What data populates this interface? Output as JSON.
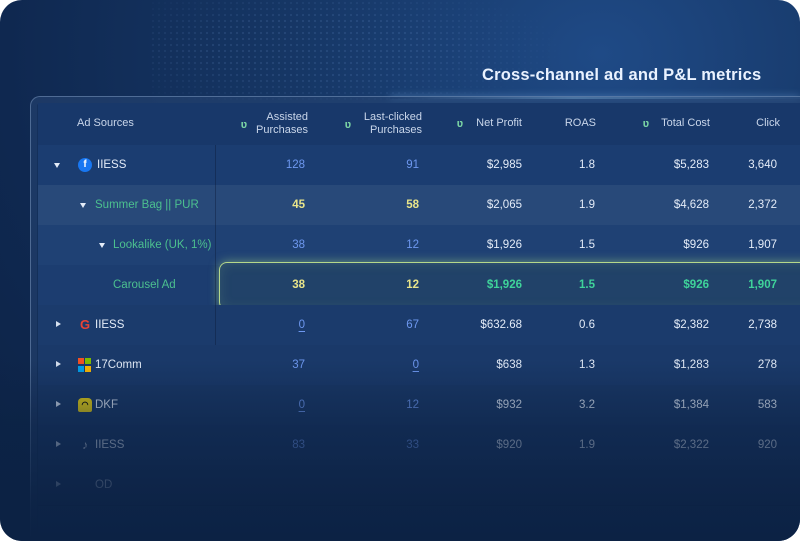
{
  "title": "Cross-channel ad and P&L metrics",
  "colors": {
    "background": "#163766",
    "table_row": "#1b3d71",
    "blue_value": "#6e98f0",
    "yellow_value": "#e9e58a",
    "green_value": "#3fd39a",
    "highlight_border": "#b6d88a"
  },
  "columns": {
    "source": "Ad Sources",
    "assisted": [
      "Assisted",
      "Purchases"
    ],
    "last_clicked": [
      "Last-clicked",
      "Purchases"
    ],
    "net_profit": "Net Profit",
    "roas": "ROAS",
    "total_cost": "Total Cost",
    "click": "Click",
    "metric_icon": "ua-logo-icon"
  },
  "rows": [
    {
      "name": "IIESS",
      "icon": "facebook-icon",
      "expand": "expanded",
      "assisted": "128",
      "last_clicked": "91",
      "net_profit": "$2,985",
      "roas": "1.8",
      "total_cost": "$5,283",
      "click": "3,640"
    },
    {
      "name": "Summer Bag || PUR",
      "icon": "",
      "expand": "expanded",
      "assisted": "45",
      "last_clicked": "58",
      "net_profit": "$2,065",
      "roas": "1.9",
      "total_cost": "$4,628",
      "click": "2,372"
    },
    {
      "name": "Lookalike (UK, 1%)",
      "icon": "",
      "expand": "expanded",
      "assisted": "38",
      "last_clicked": "12",
      "net_profit": "$1,926",
      "roas": "1.5",
      "total_cost": "$926",
      "click": "1,907"
    },
    {
      "name": "Carousel Ad",
      "icon": "",
      "expand": "none",
      "assisted": "38",
      "last_clicked": "12",
      "net_profit": "$1,926",
      "roas": "1.5",
      "total_cost": "$926",
      "click": "1,907"
    },
    {
      "name": "IIESS",
      "icon": "google-icon",
      "expand": "collapsed",
      "assisted": "0",
      "last_clicked": "67",
      "net_profit": "$632.68",
      "roas": "0.6",
      "total_cost": "$2,382",
      "click": "2,738"
    },
    {
      "name": "17Comm",
      "icon": "microsoft-icon",
      "expand": "collapsed",
      "assisted": "37",
      "last_clicked": "0",
      "net_profit": "$638",
      "roas": "1.3",
      "total_cost": "$1,283",
      "click": "278"
    },
    {
      "name": "DKF",
      "icon": "snapchat-icon",
      "expand": "collapsed",
      "assisted": "0",
      "last_clicked": "12",
      "net_profit": "$932",
      "roas": "3.2",
      "total_cost": "$1,384",
      "click": "583"
    },
    {
      "name": "IIESS",
      "icon": "tiktok-icon",
      "expand": "collapsed",
      "assisted": "83",
      "last_clicked": "33",
      "net_profit": "$920",
      "roas": "1.9",
      "total_cost": "$2,322",
      "click": "920"
    },
    {
      "name": "OD",
      "icon": "",
      "expand": "collapsed",
      "assisted": "",
      "last_clicked": "",
      "net_profit": "",
      "roas": "",
      "total_cost": "",
      "click": ""
    }
  ]
}
